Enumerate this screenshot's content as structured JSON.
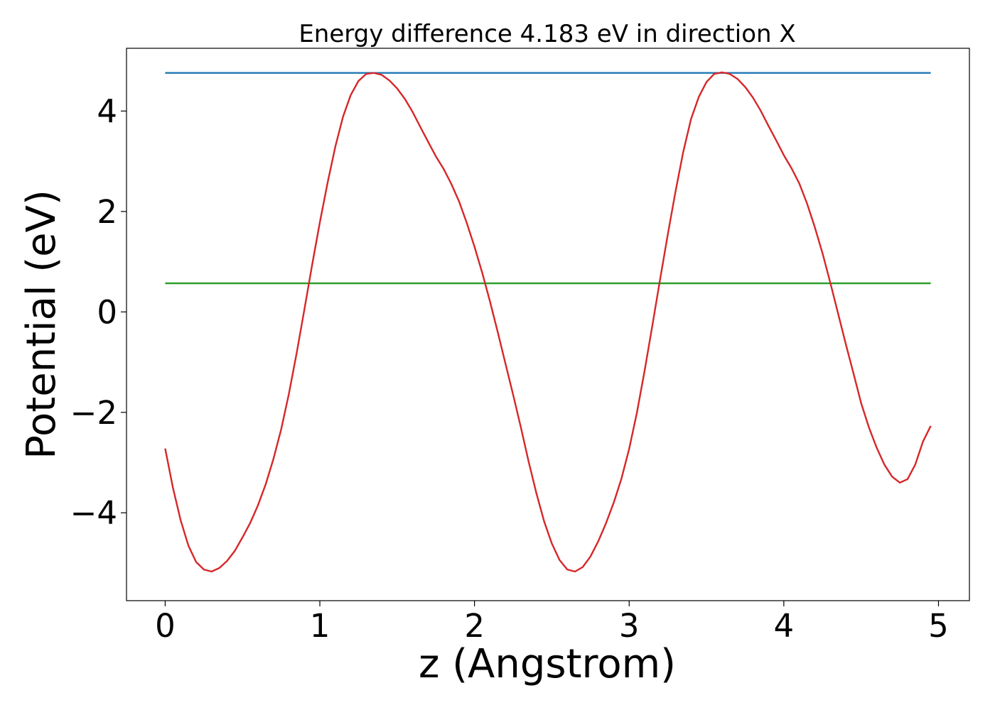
{
  "chart_data": {
    "type": "line",
    "title": "Energy difference 4.183 eV in direction X",
    "xlabel": "z (Angstrom)",
    "ylabel": "Potential (eV)",
    "xlim": [
      -0.25,
      5.2
    ],
    "ylim": [
      -5.75,
      5.25
    ],
    "grid": false,
    "xticks": [
      {
        "value": 0,
        "label": "0"
      },
      {
        "value": 1,
        "label": "1"
      },
      {
        "value": 2,
        "label": "2"
      },
      {
        "value": 3,
        "label": "3"
      },
      {
        "value": 4,
        "label": "4"
      },
      {
        "value": 5,
        "label": "5"
      }
    ],
    "yticks": [
      {
        "value": -4,
        "label": "−4"
      },
      {
        "value": -2,
        "label": "−2"
      },
      {
        "value": 0,
        "label": "0"
      },
      {
        "value": 2,
        "label": "2"
      },
      {
        "value": 4,
        "label": "4"
      }
    ],
    "series": [
      {
        "color": "#1f77b4",
        "x": [
          0,
          4.95
        ],
        "y": [
          4.76,
          4.76
        ]
      },
      {
        "color": "#2ca02c",
        "x": [
          0,
          4.95
        ],
        "y": [
          0.57,
          0.57
        ]
      },
      {
        "color": "#d62728",
        "x": [
          0.0,
          0.05,
          0.1,
          0.15,
          0.2,
          0.25,
          0.3,
          0.35,
          0.4,
          0.45,
          0.5,
          0.55,
          0.6,
          0.65,
          0.7,
          0.75,
          0.8,
          0.85,
          0.9,
          0.95,
          1.0,
          1.05,
          1.1,
          1.15,
          1.2,
          1.25,
          1.3,
          1.35,
          1.4,
          1.45,
          1.5,
          1.55,
          1.6,
          1.65,
          1.7,
          1.75,
          1.8,
          1.85,
          1.9,
          1.95,
          2.0,
          2.05,
          2.1,
          2.15,
          2.2,
          2.25,
          2.3,
          2.35,
          2.4,
          2.45,
          2.5,
          2.55,
          2.6,
          2.65,
          2.7,
          2.75,
          2.8,
          2.85,
          2.9,
          2.95,
          3.0,
          3.05,
          3.1,
          3.15,
          3.2,
          3.25,
          3.3,
          3.35,
          3.4,
          3.45,
          3.5,
          3.55,
          3.6,
          3.65,
          3.7,
          3.75,
          3.8,
          3.85,
          3.9,
          3.95,
          4.0,
          4.05,
          4.1,
          4.15,
          4.2,
          4.25,
          4.3,
          4.35,
          4.4,
          4.45,
          4.5,
          4.55,
          4.6,
          4.65,
          4.7,
          4.75,
          4.8,
          4.85,
          4.9,
          4.95
        ],
        "y": [
          -2.72,
          -3.5,
          -4.15,
          -4.65,
          -4.98,
          -5.13,
          -5.17,
          -5.1,
          -4.96,
          -4.76,
          -4.49,
          -4.2,
          -3.85,
          -3.43,
          -2.93,
          -2.34,
          -1.63,
          -0.82,
          0.05,
          0.93,
          1.78,
          2.57,
          3.29,
          3.89,
          4.32,
          4.6,
          4.74,
          4.76,
          4.72,
          4.61,
          4.45,
          4.24,
          3.98,
          3.68,
          3.39,
          3.1,
          2.85,
          2.55,
          2.2,
          1.77,
          1.3,
          0.78,
          0.21,
          -0.4,
          -1.03,
          -1.65,
          -2.3,
          -2.98,
          -3.61,
          -4.17,
          -4.61,
          -4.94,
          -5.13,
          -5.17,
          -5.08,
          -4.87,
          -4.57,
          -4.21,
          -3.8,
          -3.32,
          -2.73,
          -2.01,
          -1.17,
          -0.27,
          0.65,
          1.55,
          2.4,
          3.19,
          3.84,
          4.28,
          4.58,
          4.74,
          4.77,
          4.74,
          4.64,
          4.48,
          4.27,
          4.01,
          3.71,
          3.42,
          3.12,
          2.86,
          2.56,
          2.16,
          1.69,
          1.17,
          0.59,
          -0.02,
          -0.63,
          -1.22,
          -1.82,
          -2.3,
          -2.7,
          -3.04,
          -3.28,
          -3.4,
          -3.33,
          -3.04,
          -2.58,
          -2.27
        ]
      }
    ]
  }
}
